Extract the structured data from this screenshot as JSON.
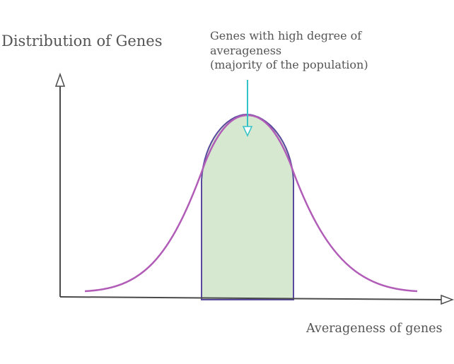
{
  "diagram": {
    "y_axis_title": "Distribution of Genes",
    "x_axis_title": "Averageness of genes",
    "annotation": {
      "lines": [
        "Genes with high degree of",
        "averageness",
        "(majority of the population)"
      ]
    },
    "colors": {
      "axis": "#4a4a4a",
      "bell_curve": "#b15db8",
      "highlight_fill": "#d6e9d0",
      "highlight_stroke": "#5a4a9e",
      "pointer_arrow": "#33c2c8",
      "text": "#555555"
    }
  }
}
